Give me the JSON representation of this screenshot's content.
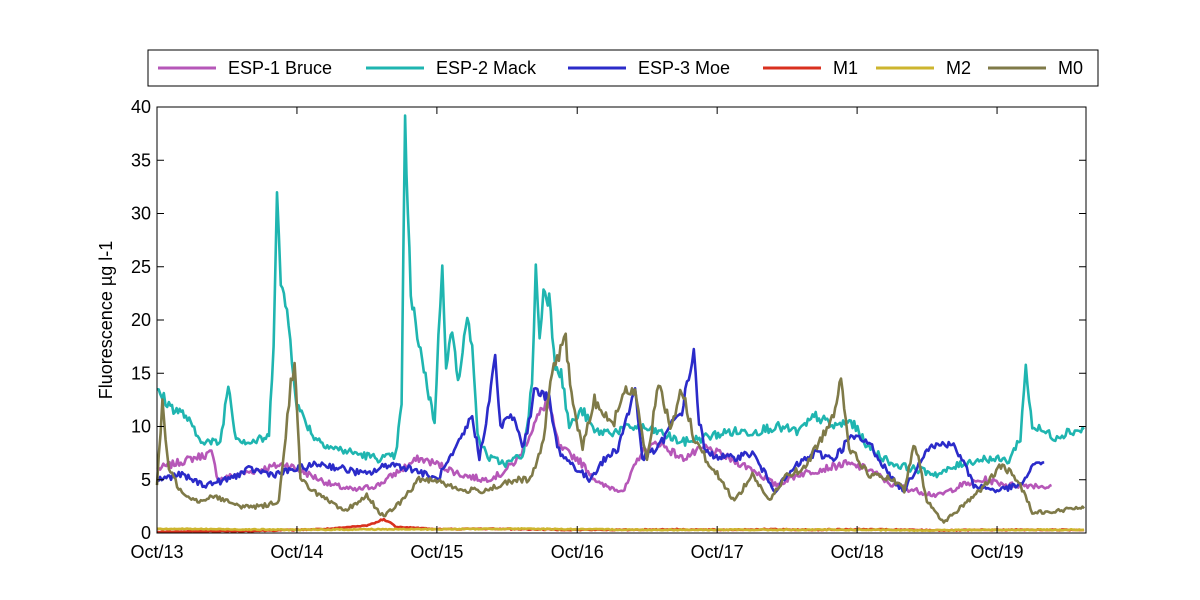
{
  "chart_data": {
    "type": "line",
    "title": "",
    "xlabel": "",
    "ylabel": "Fluorescence µg l-1",
    "ylim": [
      0,
      40
    ],
    "yticks": [
      0,
      5,
      10,
      15,
      20,
      25,
      30,
      35,
      40
    ],
    "xlim": [
      "2013-10-01",
      "2020-05-20"
    ],
    "xticks": [
      {
        "date": "2013-10-01",
        "label": "Oct/13"
      },
      {
        "date": "2014-10-01",
        "label": "Oct/14"
      },
      {
        "date": "2015-10-01",
        "label": "Oct/15"
      },
      {
        "date": "2016-10-01",
        "label": "Oct/16"
      },
      {
        "date": "2017-10-01",
        "label": "Oct/17"
      },
      {
        "date": "2018-10-01",
        "label": "Oct/18"
      },
      {
        "date": "2019-10-01",
        "label": "Oct/19"
      }
    ],
    "grid": false,
    "legend_position": "top",
    "series": [
      {
        "name": "ESP-1 Bruce",
        "color": "#b657b8",
        "points": [
          [
            "2013-10-01",
            6.0
          ],
          [
            "2013-11-15",
            6.5
          ],
          [
            "2014-01-01",
            7.0
          ],
          [
            "2014-02-20",
            7.5
          ],
          [
            "2014-03-10",
            5.0
          ],
          [
            "2014-05-01",
            5.5
          ],
          [
            "2014-07-01",
            6.0
          ],
          [
            "2014-09-01",
            6.5
          ],
          [
            "2014-11-01",
            5.5
          ],
          [
            "2015-01-01",
            4.5
          ],
          [
            "2015-03-01",
            4.0
          ],
          [
            "2015-05-01",
            4.5
          ],
          [
            "2015-07-01",
            6.0
          ],
          [
            "2015-08-15",
            7.0
          ],
          [
            "2015-10-01",
            6.5
          ],
          [
            "2015-12-01",
            5.5
          ],
          [
            "2016-02-01",
            5.0
          ],
          [
            "2016-03-15",
            5.5
          ],
          [
            "2016-05-01",
            7.0
          ],
          [
            "2016-06-15",
            10.5
          ],
          [
            "2016-07-15",
            12.5
          ],
          [
            "2016-08-15",
            8.0
          ],
          [
            "2016-10-01",
            7.0
          ],
          [
            "2016-12-01",
            4.5
          ],
          [
            "2017-02-01",
            4.0
          ],
          [
            "2017-03-15",
            7.5
          ],
          [
            "2017-05-01",
            8.5
          ],
          [
            "2017-07-01",
            7.0
          ],
          [
            "2017-09-01",
            8.0
          ],
          [
            "2017-11-01",
            7.0
          ],
          [
            "2018-01-01",
            6.0
          ],
          [
            "2018-03-01",
            4.5
          ],
          [
            "2018-05-01",
            5.5
          ],
          [
            "2018-07-01",
            6.0
          ],
          [
            "2018-09-01",
            6.5
          ],
          [
            "2018-11-01",
            6.0
          ],
          [
            "2019-01-01",
            4.5
          ],
          [
            "2019-03-01",
            4.0
          ],
          [
            "2019-05-01",
            3.5
          ],
          [
            "2019-07-01",
            4.5
          ],
          [
            "2019-09-01",
            5.0
          ],
          [
            "2019-11-01",
            4.5
          ],
          [
            "2020-01-01",
            4.5
          ],
          [
            "2020-02-20",
            4.3
          ]
        ]
      },
      {
        "name": "ESP-2 Mack",
        "color": "#1fb5b0",
        "points": [
          [
            "2013-10-01",
            13.5
          ],
          [
            "2013-11-01",
            12.0
          ],
          [
            "2013-12-15",
            11.0
          ],
          [
            "2014-01-15",
            9.0
          ],
          [
            "2014-02-15",
            8.5
          ],
          [
            "2014-03-15",
            8.5
          ],
          [
            "2014-04-05",
            14.0
          ],
          [
            "2014-04-25",
            9.0
          ],
          [
            "2014-06-01",
            8.5
          ],
          [
            "2014-07-20",
            9.0
          ],
          [
            "2014-08-01",
            18.0
          ],
          [
            "2014-08-10",
            33.0
          ],
          [
            "2014-08-20",
            23.0
          ],
          [
            "2014-09-05",
            21.0
          ],
          [
            "2014-10-01",
            12.0
          ],
          [
            "2014-11-15",
            9.0
          ],
          [
            "2015-01-01",
            8.0
          ],
          [
            "2015-03-01",
            7.5
          ],
          [
            "2015-05-01",
            7.0
          ],
          [
            "2015-06-15",
            7.2
          ],
          [
            "2015-07-01",
            12.0
          ],
          [
            "2015-07-10",
            38.5
          ],
          [
            "2015-07-25",
            22.0
          ],
          [
            "2015-08-15",
            18.0
          ],
          [
            "2015-09-10",
            13.0
          ],
          [
            "2015-09-25",
            10.5
          ],
          [
            "2015-10-05",
            18.0
          ],
          [
            "2015-10-15",
            25.5
          ],
          [
            "2015-10-25",
            16.0
          ],
          [
            "2015-11-10",
            19.0
          ],
          [
            "2015-11-25",
            14.0
          ],
          [
            "2015-12-15",
            20.0
          ],
          [
            "2016-01-01",
            18.0
          ],
          [
            "2016-01-15",
            9.0
          ],
          [
            "2016-02-15",
            7.0
          ],
          [
            "2016-04-01",
            6.5
          ],
          [
            "2016-05-15",
            7.5
          ],
          [
            "2016-06-05",
            14.0
          ],
          [
            "2016-06-15",
            25.0
          ],
          [
            "2016-06-25",
            18.0
          ],
          [
            "2016-07-05",
            23.0
          ],
          [
            "2016-07-20",
            22.0
          ],
          [
            "2016-08-05",
            16.0
          ],
          [
            "2016-08-20",
            15.0
          ],
          [
            "2016-09-10",
            10.0
          ],
          [
            "2016-10-15",
            11.5
          ],
          [
            "2016-11-15",
            9.5
          ],
          [
            "2017-01-01",
            9.5
          ],
          [
            "2017-03-01",
            10.0
          ],
          [
            "2017-05-01",
            9.5
          ],
          [
            "2017-07-01",
            8.5
          ],
          [
            "2017-09-01",
            9.0
          ],
          [
            "2017-11-01",
            9.5
          ],
          [
            "2018-01-01",
            9.5
          ],
          [
            "2018-03-01",
            10.0
          ],
          [
            "2018-05-01",
            9.5
          ],
          [
            "2018-06-15",
            11.0
          ],
          [
            "2018-08-01",
            10.0
          ],
          [
            "2018-09-15",
            10.5
          ],
          [
            "2018-11-01",
            8.0
          ],
          [
            "2019-01-01",
            6.5
          ],
          [
            "2019-03-01",
            6.0
          ],
          [
            "2019-05-01",
            5.5
          ],
          [
            "2019-07-01",
            6.5
          ],
          [
            "2019-09-01",
            7.0
          ],
          [
            "2019-11-01",
            6.8
          ],
          [
            "2019-12-01",
            9.0
          ],
          [
            "2019-12-15",
            15.5
          ],
          [
            "2020-01-01",
            10.0
          ],
          [
            "2020-02-01",
            9.5
          ],
          [
            "2020-03-01",
            9.0
          ],
          [
            "2020-04-01",
            9.5
          ],
          [
            "2020-05-15",
            9.7
          ]
        ]
      },
      {
        "name": "ESP-3 Moe",
        "color": "#2b2bc9",
        "points": [
          [
            "2013-10-01",
            5.0
          ],
          [
            "2013-12-01",
            5.5
          ],
          [
            "2014-02-01",
            4.5
          ],
          [
            "2014-04-01",
            5.0
          ],
          [
            "2014-06-01",
            6.0
          ],
          [
            "2014-08-01",
            5.5
          ],
          [
            "2014-10-01",
            6.0
          ],
          [
            "2014-12-01",
            6.5
          ],
          [
            "2015-02-01",
            6.0
          ],
          [
            "2015-04-01",
            5.5
          ],
          [
            "2015-06-01",
            6.5
          ],
          [
            "2015-08-01",
            6.0
          ],
          [
            "2015-10-01",
            5.0
          ],
          [
            "2015-11-15",
            7.5
          ],
          [
            "2016-01-01",
            11.0
          ],
          [
            "2016-01-20",
            7.0
          ],
          [
            "2016-02-15",
            12.5
          ],
          [
            "2016-03-01",
            16.5
          ],
          [
            "2016-03-15",
            10.0
          ],
          [
            "2016-04-15",
            11.0
          ],
          [
            "2016-05-15",
            8.0
          ],
          [
            "2016-06-15",
            14.0
          ],
          [
            "2016-07-01",
            13.0
          ],
          [
            "2016-07-20",
            12.5
          ],
          [
            "2016-08-10",
            8.0
          ],
          [
            "2016-09-01",
            7.0
          ],
          [
            "2016-10-01",
            6.0
          ],
          [
            "2016-11-01",
            5.0
          ],
          [
            "2016-12-01",
            6.5
          ],
          [
            "2017-01-15",
            8.0
          ],
          [
            "2017-03-01",
            13.5
          ],
          [
            "2017-03-20",
            7.0
          ],
          [
            "2017-05-01",
            8.0
          ],
          [
            "2017-06-01",
            10.0
          ],
          [
            "2017-07-01",
            11.5
          ],
          [
            "2017-08-01",
            17.0
          ],
          [
            "2017-08-15",
            10.5
          ],
          [
            "2017-09-01",
            7.5
          ],
          [
            "2017-11-01",
            7.0
          ],
          [
            "2018-01-01",
            7.5
          ],
          [
            "2018-03-01",
            4.0
          ],
          [
            "2018-05-01",
            6.5
          ],
          [
            "2018-06-15",
            7.5
          ],
          [
            "2018-08-01",
            7.0
          ],
          [
            "2018-09-15",
            9.0
          ],
          [
            "2018-11-01",
            8.5
          ],
          [
            "2019-01-01",
            5.0
          ],
          [
            "2019-02-01",
            4.0
          ],
          [
            "2019-04-01",
            8.0
          ],
          [
            "2019-06-01",
            8.5
          ],
          [
            "2019-07-01",
            7.0
          ],
          [
            "2019-08-01",
            4.5
          ],
          [
            "2019-10-01",
            4.0
          ],
          [
            "2019-12-01",
            4.5
          ],
          [
            "2020-01-15",
            6.8
          ],
          [
            "2020-02-01",
            6.5
          ]
        ]
      },
      {
        "name": "M1",
        "color": "#d9301f",
        "points": [
          [
            "2013-10-01",
            0.1
          ],
          [
            "2014-02-01",
            0.15
          ],
          [
            "2014-06-01",
            0.2
          ],
          [
            "2014-10-01",
            0.3
          ],
          [
            "2015-01-01",
            0.4
          ],
          [
            "2015-04-01",
            0.7
          ],
          [
            "2015-05-20",
            1.3
          ],
          [
            "2015-06-15",
            0.6
          ],
          [
            "2015-08-01",
            0.5
          ],
          [
            "2015-10-01",
            0.35
          ],
          [
            "2016-02-01",
            0.4
          ],
          [
            "2016-06-01",
            0.35
          ],
          [
            "2016-10-01",
            0.3
          ],
          [
            "2017-02-01",
            0.3
          ],
          [
            "2017-06-01",
            0.35
          ],
          [
            "2017-10-01",
            0.3
          ],
          [
            "2018-02-01",
            0.35
          ],
          [
            "2018-06-01",
            0.3
          ],
          [
            "2018-10-01",
            0.35
          ],
          [
            "2019-02-01",
            0.3
          ],
          [
            "2019-06-01",
            0.25
          ],
          [
            "2019-10-01",
            0.3
          ],
          [
            "2020-02-01",
            0.3
          ],
          [
            "2020-05-15",
            0.3
          ]
        ]
      },
      {
        "name": "M2",
        "color": "#cdb52e",
        "points": [
          [
            "2013-10-01",
            0.4
          ],
          [
            "2014-04-01",
            0.35
          ],
          [
            "2014-10-01",
            0.3
          ],
          [
            "2015-04-01",
            0.35
          ],
          [
            "2015-10-01",
            0.35
          ],
          [
            "2016-04-01",
            0.4
          ],
          [
            "2016-10-01",
            0.35
          ],
          [
            "2017-04-01",
            0.3
          ],
          [
            "2017-10-01",
            0.3
          ],
          [
            "2018-04-01",
            0.3
          ],
          [
            "2018-10-01",
            0.3
          ],
          [
            "2019-04-01",
            0.25
          ],
          [
            "2019-10-01",
            0.3
          ],
          [
            "2020-05-15",
            0.3
          ]
        ]
      },
      {
        "name": "M0",
        "color": "#7f7a48",
        "points": [
          [
            "2013-10-01",
            4.5
          ],
          [
            "2013-10-15",
            12.0
          ],
          [
            "2013-11-01",
            6.0
          ],
          [
            "2013-12-01",
            4.0
          ],
          [
            "2014-01-15",
            3.0
          ],
          [
            "2014-03-01",
            3.5
          ],
          [
            "2014-05-01",
            2.5
          ],
          [
            "2014-07-01",
            2.5
          ],
          [
            "2014-08-15",
            3.0
          ],
          [
            "2014-09-15",
            14.0
          ],
          [
            "2014-09-25",
            16.0
          ],
          [
            "2014-10-10",
            5.0
          ],
          [
            "2014-12-01",
            3.5
          ],
          [
            "2015-02-01",
            2.0
          ],
          [
            "2015-04-01",
            3.5
          ],
          [
            "2015-05-15",
            1.5
          ],
          [
            "2015-07-01",
            3.0
          ],
          [
            "2015-08-15",
            5.0
          ],
          [
            "2015-10-01",
            5.0
          ],
          [
            "2015-12-01",
            4.0
          ],
          [
            "2016-02-01",
            4.0
          ],
          [
            "2016-03-15",
            4.5
          ],
          [
            "2016-05-01",
            5.0
          ],
          [
            "2016-06-01",
            5.0
          ],
          [
            "2016-07-01",
            8.0
          ],
          [
            "2016-08-01",
            16.0
          ],
          [
            "2016-09-01",
            18.0
          ],
          [
            "2016-09-20",
            12.0
          ],
          [
            "2016-10-15",
            8.0
          ],
          [
            "2016-11-15",
            12.5
          ],
          [
            "2017-01-01",
            10.0
          ],
          [
            "2017-02-01",
            13.5
          ],
          [
            "2017-03-01",
            13.0
          ],
          [
            "2017-04-01",
            7.0
          ],
          [
            "2017-05-01",
            14.0
          ],
          [
            "2017-06-01",
            10.0
          ],
          [
            "2017-07-01",
            13.5
          ],
          [
            "2017-08-01",
            9.0
          ],
          [
            "2017-09-01",
            7.0
          ],
          [
            "2017-10-01",
            5.5
          ],
          [
            "2017-11-15",
            3.0
          ],
          [
            "2018-01-01",
            5.5
          ],
          [
            "2018-02-15",
            3.0
          ],
          [
            "2018-04-01",
            5.5
          ],
          [
            "2018-05-15",
            6.0
          ],
          [
            "2018-07-01",
            9.0
          ],
          [
            "2018-08-01",
            11.0
          ],
          [
            "2018-08-20",
            15.0
          ],
          [
            "2018-09-10",
            8.0
          ],
          [
            "2018-11-01",
            5.5
          ],
          [
            "2019-01-01",
            5.0
          ],
          [
            "2019-02-01",
            4.0
          ],
          [
            "2019-03-01",
            8.5
          ],
          [
            "2019-04-01",
            3.0
          ],
          [
            "2019-05-15",
            1.0
          ],
          [
            "2019-07-01",
            2.5
          ],
          [
            "2019-09-01",
            4.5
          ],
          [
            "2019-10-15",
            6.5
          ],
          [
            "2019-12-01",
            4.5
          ],
          [
            "2020-01-01",
            2.0
          ],
          [
            "2020-03-01",
            2.0
          ],
          [
            "2020-05-15",
            2.5
          ]
        ]
      }
    ]
  }
}
